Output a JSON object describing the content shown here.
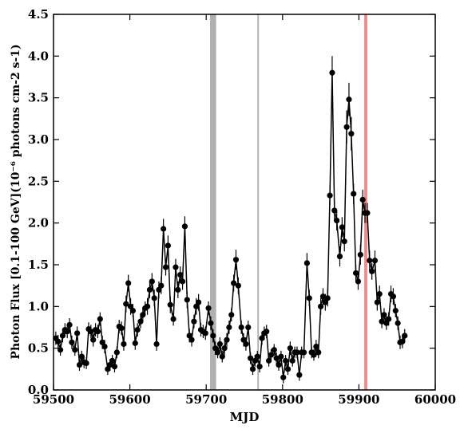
{
  "chart_data": {
    "type": "errorline",
    "xlabel": "MJD",
    "ylabel": "Photon Flux [0.1-100 GeV](10⁻⁶ photons cm-2 s-1)",
    "xlim": [
      59500,
      60000
    ],
    "xticks": [
      59500,
      59600,
      59700,
      59800,
      59900,
      60000
    ],
    "ylim": [
      0,
      4.5
    ],
    "yticks": [
      {
        "value": 0,
        "label": "0.0"
      },
      0.5,
      {
        "value": 1,
        "label": "1.0"
      },
      1.5,
      {
        "value": 2,
        "label": "2.0"
      },
      2.5,
      {
        "value": 3,
        "label": "3.0"
      },
      3.5,
      {
        "value": 4,
        "label": "4.0"
      },
      4.5
    ],
    "color": "#000000",
    "spans": [
      {
        "xlim": [
          59705,
          59713
        ],
        "color": "#b0b0b0"
      },
      {
        "xlim": [
          59767,
          59769
        ],
        "color": "#b0b0b0"
      },
      {
        "xlim": [
          59907,
          59911
        ],
        "color": "#f08a8a"
      }
    ],
    "x": [
      59503,
      59506,
      59509,
      59512,
      59515,
      59518,
      59521,
      59524,
      59528,
      59531,
      59534,
      59537,
      59540,
      59543,
      59546,
      59549,
      59552,
      59555,
      59558,
      59561,
      59564,
      59567,
      59571,
      59574,
      59577,
      59580,
      59583,
      59586,
      59589,
      59592,
      59595,
      59598,
      59601,
      59604,
      59607,
      59610,
      59614,
      59617,
      59620,
      59623,
      59626,
      59629,
      59632,
      59635,
      59638,
      59641,
      59644,
      59647,
      59650,
      59653,
      59657,
      59660,
      59663,
      59666,
      59669,
      59672,
      59675,
      59678,
      59681,
      59684,
      59687,
      59690,
      59693,
      59696,
      59699,
      59703,
      59706,
      59709,
      59712,
      59715,
      59718,
      59721,
      59724,
      59727,
      59730,
      59733,
      59736,
      59739,
      59742,
      59746,
      59749,
      59752,
      59755,
      59758,
      59761,
      59764,
      59767,
      59770,
      59773,
      59776,
      59779,
      59782,
      59785,
      59789,
      59792,
      59795,
      59798,
      59801,
      59804,
      59807,
      59810,
      59813,
      59816,
      59819,
      59822,
      59825,
      59828,
      59832,
      59835,
      59838,
      59841,
      59844,
      59847,
      59850,
      59853,
      59856,
      59859,
      59862,
      59865,
      59868,
      59871,
      59875,
      59878,
      59881,
      59884,
      59887,
      59890,
      59893,
      59896,
      59899,
      59902,
      59905,
      59908,
      59911,
      59914,
      59917,
      59921,
      59924,
      59927,
      59930,
      59933,
      59936,
      59939,
      59942,
      59945,
      59948,
      59951,
      59954,
      59957,
      59960
    ],
    "values": [
      0.62,
      0.58,
      0.48,
      0.65,
      0.72,
      0.7,
      0.78,
      0.57,
      0.48,
      0.68,
      0.3,
      0.4,
      0.33,
      0.32,
      0.73,
      0.7,
      0.6,
      0.72,
      0.7,
      0.85,
      0.57,
      0.52,
      0.25,
      0.3,
      0.35,
      0.28,
      0.45,
      0.76,
      0.74,
      0.55,
      1.03,
      1.28,
      1.0,
      0.95,
      0.56,
      0.72,
      0.82,
      0.9,
      0.98,
      1.0,
      1.2,
      1.3,
      1.1,
      0.55,
      1.2,
      1.25,
      1.93,
      1.47,
      1.73,
      1.02,
      0.85,
      1.47,
      1.2,
      1.38,
      1.3,
      1.96,
      1.08,
      0.65,
      0.6,
      0.82,
      1.0,
      1.05,
      0.72,
      0.7,
      0.68,
      0.98,
      0.8,
      0.65,
      0.5,
      0.45,
      0.55,
      0.4,
      0.5,
      0.6,
      0.75,
      0.9,
      1.28,
      1.56,
      1.25,
      0.75,
      0.6,
      0.55,
      0.75,
      0.38,
      0.25,
      0.35,
      0.4,
      0.28,
      0.62,
      0.68,
      0.7,
      0.35,
      0.42,
      0.48,
      0.38,
      0.3,
      0.4,
      0.15,
      0.35,
      0.25,
      0.5,
      0.35,
      0.45,
      0.45,
      0.18,
      0.45,
      0.45,
      1.52,
      1.1,
      0.45,
      0.42,
      0.52,
      0.45,
      1.0,
      1.12,
      1.05,
      1.1,
      2.33,
      3.8,
      2.15,
      2.03,
      1.6,
      1.95,
      1.78,
      3.15,
      3.48,
      3.07,
      2.35,
      1.4,
      1.3,
      1.62,
      2.28,
      2.12,
      2.12,
      1.55,
      1.42,
      1.55,
      1.05,
      1.15,
      0.82,
      0.9,
      0.8,
      0.85,
      1.15,
      1.12,
      0.95,
      0.8,
      0.57,
      0.58,
      0.65
    ],
    "errors": [
      0.08,
      0.08,
      0.07,
      0.08,
      0.08,
      0.08,
      0.08,
      0.08,
      0.07,
      0.08,
      0.07,
      0.07,
      0.07,
      0.07,
      0.08,
      0.08,
      0.08,
      0.08,
      0.08,
      0.08,
      0.08,
      0.08,
      0.07,
      0.07,
      0.07,
      0.07,
      0.07,
      0.08,
      0.08,
      0.08,
      0.1,
      0.1,
      0.1,
      0.08,
      0.08,
      0.08,
      0.08,
      0.08,
      0.08,
      0.1,
      0.1,
      0.1,
      0.1,
      0.08,
      0.1,
      0.1,
      0.12,
      0.1,
      0.12,
      0.1,
      0.08,
      0.1,
      0.1,
      0.1,
      0.1,
      0.12,
      0.1,
      0.08,
      0.08,
      0.08,
      0.1,
      0.1,
      0.08,
      0.08,
      0.08,
      0.08,
      0.08,
      0.08,
      0.08,
      0.07,
      0.08,
      0.07,
      0.08,
      0.08,
      0.08,
      0.08,
      0.1,
      0.12,
      0.1,
      0.08,
      0.08,
      0.08,
      0.08,
      0.07,
      0.07,
      0.07,
      0.07,
      0.07,
      0.08,
      0.08,
      0.08,
      0.07,
      0.07,
      0.07,
      0.07,
      0.07,
      0.07,
      0.07,
      0.07,
      0.07,
      0.08,
      0.07,
      0.07,
      0.07,
      0.07,
      0.07,
      0.07,
      0.12,
      0.1,
      0.07,
      0.07,
      0.08,
      0.07,
      0.1,
      0.1,
      0.1,
      0.1,
      0.12,
      0.2,
      0.12,
      0.12,
      0.12,
      0.12,
      0.12,
      0.2,
      0.2,
      0.2,
      0.12,
      0.1,
      0.1,
      0.12,
      0.12,
      0.12,
      0.12,
      0.12,
      0.1,
      0.12,
      0.1,
      0.1,
      0.08,
      0.08,
      0.08,
      0.08,
      0.1,
      0.1,
      0.08,
      0.08,
      0.08,
      0.08,
      0.08
    ]
  }
}
